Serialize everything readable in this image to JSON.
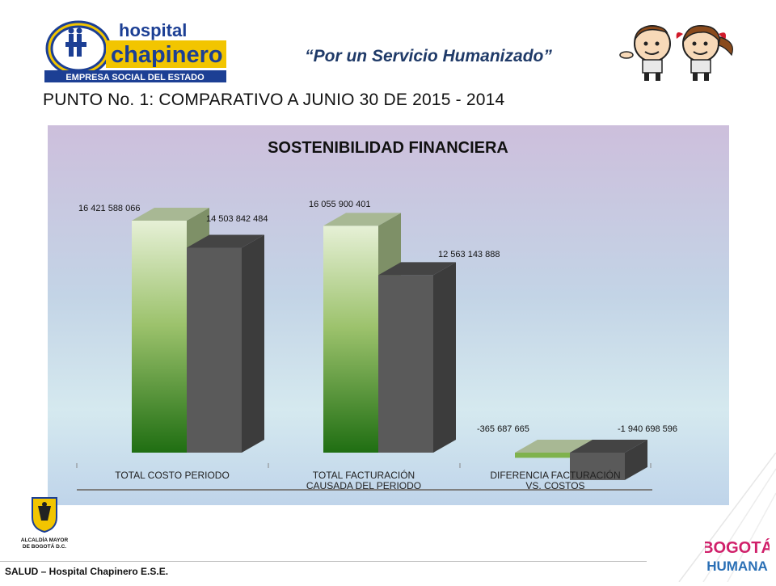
{
  "header": {
    "logo_word_top": "hospital",
    "logo_word_main": "chapinero",
    "logo_tagline": "EMPRESA SOCIAL DEL ESTADO",
    "slogan": "“Por un Servicio Humanizado”"
  },
  "heading": "PUNTO No. 1:  COMPARATIVO A JUNIO 30 DE 2015 - 2014",
  "chart_data": {
    "type": "bar",
    "title": "SOSTENIBILIDAD FINANCIERA",
    "categories": [
      "TOTAL COSTO PERIODO",
      "TOTAL FACTURACIÓN CAUSADA DEL PERIODO",
      "DIFERENCIA FACTURACIÓN VS. COSTOS"
    ],
    "category_lines": [
      [
        "TOTAL COSTO PERIODO"
      ],
      [
        "TOTAL FACTURACIÓN",
        "CAUSADA DEL PERIODO"
      ],
      [
        "DIFERENCIA FACTURACIÓN",
        "VS. COSTOS"
      ]
    ],
    "series": [
      {
        "values": [
          16421588066,
          16055900401,
          -365687665
        ],
        "labels": [
          "16 421 588 066",
          "16 055 900 401",
          "-365 687 665"
        ],
        "color": "#4f8f2a"
      },
      {
        "values": [
          14503842484,
          12563143888,
          -1940698596
        ],
        "labels": [
          "14 503 842 484",
          "12 563 143 888",
          "-1 940 698 596"
        ],
        "color": "#5a5a5a"
      }
    ],
    "ylim": [
      -2000000000,
      16421588066
    ],
    "legend": "none",
    "grid": false
  },
  "footer": {
    "crest_text_1": "ALCALDÍA MAYOR",
    "crest_text_2": "DE BOGOTÁ D.C.",
    "credit": "SALUD – Hospital Chapinero E.S.E.",
    "brand_1": "BOGOTÁ",
    "brand_2": "HUMANA"
  }
}
